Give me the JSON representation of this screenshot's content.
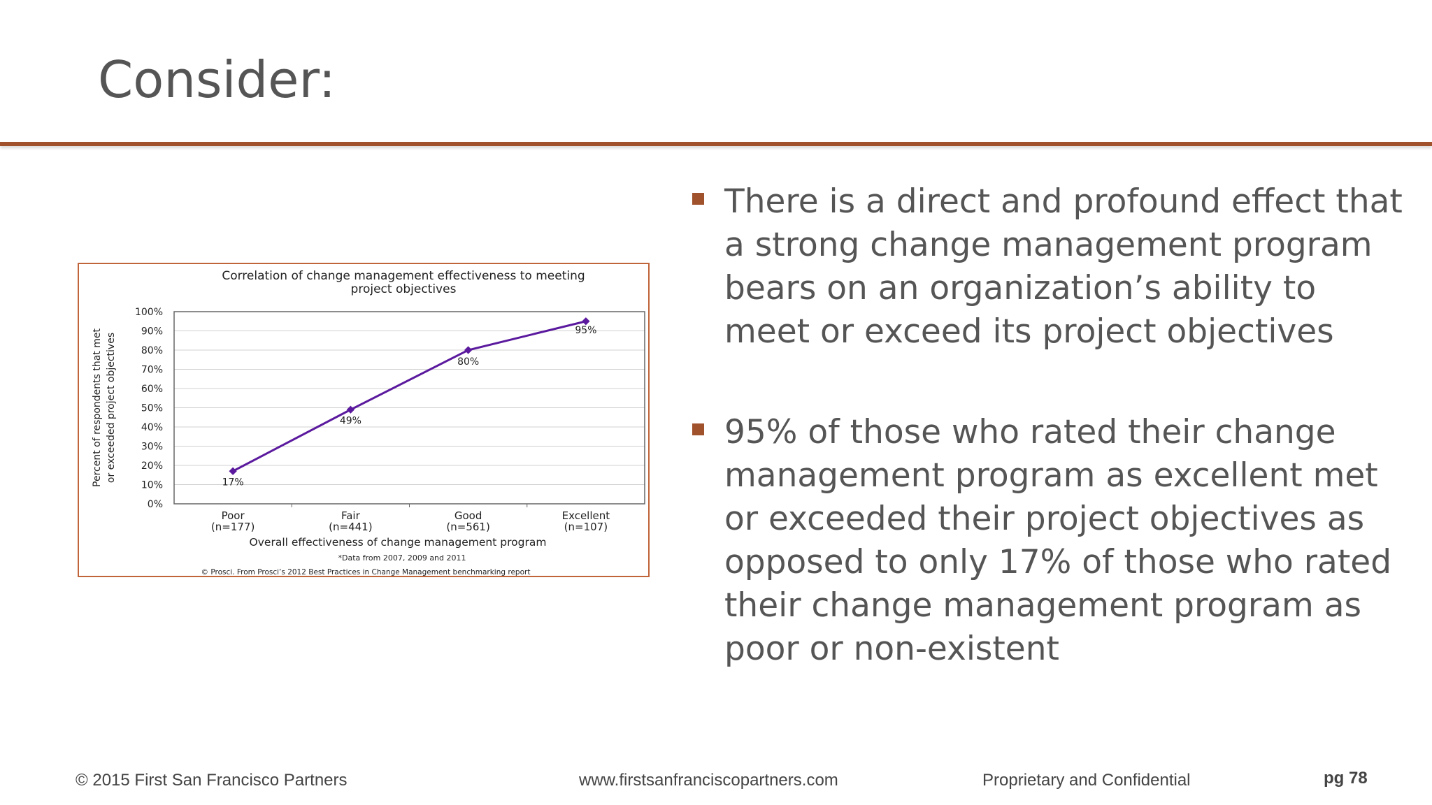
{
  "slide": {
    "title": "Consider:"
  },
  "bullets": [
    "There is a direct and profound effect that a strong change management program bears on an organization’s ability to meet or exceed its project objectives",
    "95% of  those who rated their change management program as excellent met or exceeded their project objectives as opposed to only 17% of those who rated their change management program as poor or non-existent"
  ],
  "chart_data": {
    "type": "line",
    "title": "Correlation of change management effectiveness to meeting project objectives",
    "categories": [
      "Poor (n=177)",
      "Fair (n=441)",
      "Good (n=561)",
      "Excellent (n=107)"
    ],
    "category_lines": [
      [
        "Poor",
        "(n=177)"
      ],
      [
        "Fair",
        "(n=441)"
      ],
      [
        "Good",
        "(n=561)"
      ],
      [
        "Excellent",
        "(n=107)"
      ]
    ],
    "values": [
      17,
      49,
      80,
      95
    ],
    "data_labels": [
      "17%",
      "49%",
      "80%",
      "95%"
    ],
    "xlabel": "Overall effectiveness of change management program",
    "ylabel_lines": [
      "Percent of respondents that met",
      "or exceeded project objectives"
    ],
    "yticks": [
      "0%",
      "10%",
      "20%",
      "30%",
      "40%",
      "50%",
      "60%",
      "70%",
      "80%",
      "90%",
      "100%"
    ],
    "ylim": [
      0,
      100
    ],
    "grid": true,
    "footnote": "*Data from 2007, 2009 and 2011",
    "source": "© Prosci. From Prosci’s 2012 Best Practices in Change Management benchmarking report",
    "colors": {
      "line": "#5b1a9e",
      "marker": "#5b1a9e",
      "border": "#c0643a",
      "grid": "#d0d0d0"
    }
  },
  "footer": {
    "copyright": "© 2015 First San Francisco Partners",
    "url": "www.firstsanfranciscopartners.com",
    "confidential": "Proprietary and Confidential",
    "page": "pg 78"
  },
  "colors": {
    "accent": "#a0522d",
    "text": "#555555"
  }
}
